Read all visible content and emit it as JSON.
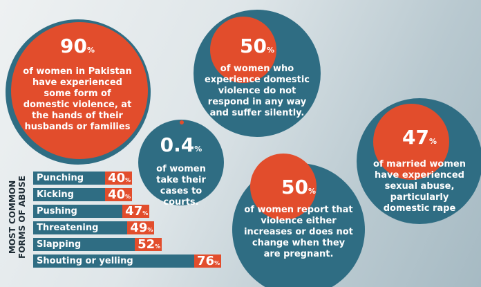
{
  "stats": [
    {
      "value": "90",
      "unit": "%",
      "text": "of women in Pakistan have experienced some form of domestic violence, at the hands of their husbands or families"
    },
    {
      "value": "50",
      "unit": "%",
      "text": "of women who experience domestic violence do not respond in any way and suffer silently."
    },
    {
      "value": "0.4",
      "unit": "%",
      "text": "of women take their cases to courts."
    },
    {
      "value": "50",
      "unit": "%",
      "text": "of women report that violence either increases or does not change when they are pregnant."
    },
    {
      "value": "47",
      "unit": "%",
      "text": "of married women have experienced sexual abuse, particularly domestic rape"
    }
  ],
  "colors": {
    "circle": "#2f6d83",
    "accent": "#e24d2c"
  },
  "chart_data": {
    "type": "bar",
    "orientation": "horizontal",
    "title": "MOST COMMON FORMS OF ABUSE",
    "categories": [
      "Punching",
      "Kicking",
      "Pushing",
      "Threatening",
      "Slapping",
      "Shouting or yelling"
    ],
    "values": [
      40,
      40,
      47,
      49,
      52,
      76
    ],
    "value_labels": [
      "40",
      "40",
      "47",
      "49",
      "52",
      "76"
    ],
    "unit": "%"
  }
}
